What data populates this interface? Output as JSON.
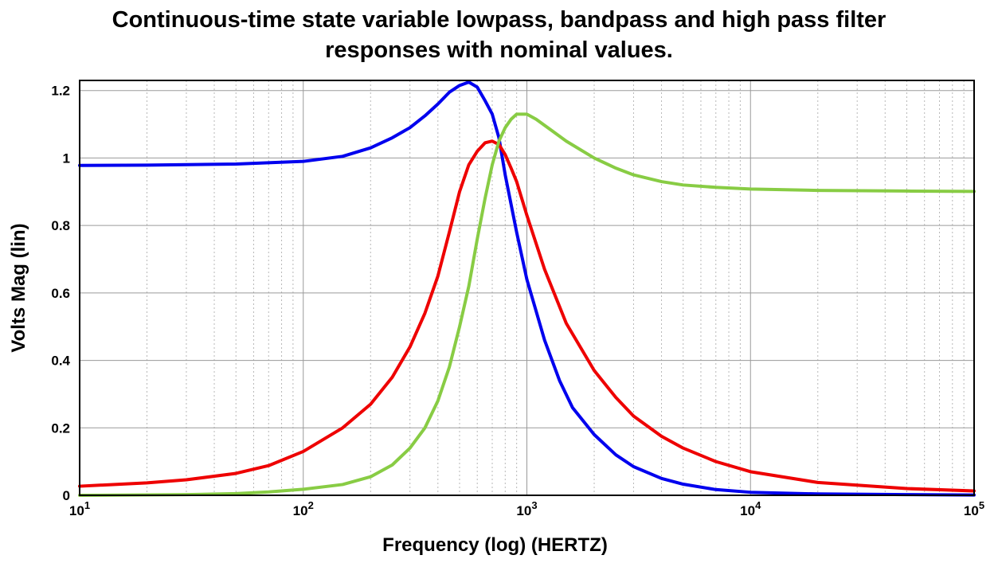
{
  "chart_data": {
    "type": "line",
    "title": {
      "line1": "Continuous-time state variable lowpass, bandpass and high pass filter",
      "line2": "responses with nominal values."
    },
    "xlabel": "Frequency (log) (HERTZ)",
    "ylabel": "Volts Mag (lin)",
    "xscale": "log",
    "xlim": [
      10,
      100000
    ],
    "ylim": [
      0,
      1.23
    ],
    "grid": true,
    "legend": "none",
    "x_ticks": [
      {
        "value": 10,
        "base": "10",
        "exp": "1"
      },
      {
        "value": 100,
        "base": "10",
        "exp": "2"
      },
      {
        "value": 1000,
        "base": "10",
        "exp": "3"
      },
      {
        "value": 10000,
        "base": "10",
        "exp": "4"
      },
      {
        "value": 100000,
        "base": "10",
        "exp": "5"
      }
    ],
    "y_ticks": [
      {
        "value": 0,
        "label": "0"
      },
      {
        "value": 0.2,
        "label": "0.2"
      },
      {
        "value": 0.4,
        "label": "0.4"
      },
      {
        "value": 0.6,
        "label": "0.6"
      },
      {
        "value": 0.8,
        "label": "0.8"
      },
      {
        "value": 1.0,
        "label": "1"
      },
      {
        "value": 1.2,
        "label": "1.2"
      }
    ],
    "series": [
      {
        "color": "#0000ee",
        "points": [
          [
            10,
            0.978
          ],
          [
            20,
            0.979
          ],
          [
            50,
            0.982
          ],
          [
            100,
            0.99
          ],
          [
            150,
            1.005
          ],
          [
            200,
            1.03
          ],
          [
            250,
            1.06
          ],
          [
            300,
            1.09
          ],
          [
            350,
            1.125
          ],
          [
            400,
            1.16
          ],
          [
            450,
            1.195
          ],
          [
            500,
            1.215
          ],
          [
            550,
            1.225
          ],
          [
            600,
            1.21
          ],
          [
            650,
            1.17
          ],
          [
            700,
            1.13
          ],
          [
            750,
            1.06
          ],
          [
            800,
            0.95
          ],
          [
            900,
            0.78
          ],
          [
            1000,
            0.64
          ],
          [
            1200,
            0.46
          ],
          [
            1400,
            0.34
          ],
          [
            1600,
            0.26
          ],
          [
            2000,
            0.18
          ],
          [
            2500,
            0.12
          ],
          [
            3000,
            0.085
          ],
          [
            4000,
            0.05
          ],
          [
            5000,
            0.033
          ],
          [
            7000,
            0.017
          ],
          [
            10000,
            0.009
          ],
          [
            20000,
            0.004
          ],
          [
            50000,
            0.002
          ],
          [
            100000,
            0.001
          ]
        ]
      },
      {
        "color": "#ee0000",
        "points": [
          [
            10,
            0.027
          ],
          [
            20,
            0.037
          ],
          [
            30,
            0.046
          ],
          [
            50,
            0.065
          ],
          [
            70,
            0.088
          ],
          [
            100,
            0.13
          ],
          [
            150,
            0.2
          ],
          [
            200,
            0.27
          ],
          [
            250,
            0.35
          ],
          [
            300,
            0.44
          ],
          [
            350,
            0.54
          ],
          [
            400,
            0.65
          ],
          [
            450,
            0.78
          ],
          [
            500,
            0.9
          ],
          [
            550,
            0.98
          ],
          [
            600,
            1.02
          ],
          [
            650,
            1.045
          ],
          [
            700,
            1.05
          ],
          [
            750,
            1.04
          ],
          [
            800,
            1.01
          ],
          [
            850,
            0.97
          ],
          [
            900,
            0.93
          ],
          [
            1000,
            0.83
          ],
          [
            1200,
            0.67
          ],
          [
            1500,
            0.51
          ],
          [
            2000,
            0.37
          ],
          [
            2500,
            0.29
          ],
          [
            3000,
            0.235
          ],
          [
            4000,
            0.175
          ],
          [
            5000,
            0.14
          ],
          [
            7000,
            0.1
          ],
          [
            10000,
            0.07
          ],
          [
            20000,
            0.038
          ],
          [
            50000,
            0.02
          ],
          [
            100000,
            0.013
          ]
        ]
      },
      {
        "color": "#88cc44",
        "points": [
          [
            10,
            0.0
          ],
          [
            30,
            0.002
          ],
          [
            50,
            0.005
          ],
          [
            70,
            0.01
          ],
          [
            100,
            0.018
          ],
          [
            150,
            0.032
          ],
          [
            200,
            0.055
          ],
          [
            250,
            0.09
          ],
          [
            300,
            0.14
          ],
          [
            350,
            0.2
          ],
          [
            400,
            0.28
          ],
          [
            450,
            0.38
          ],
          [
            500,
            0.5
          ],
          [
            550,
            0.62
          ],
          [
            600,
            0.76
          ],
          [
            650,
            0.88
          ],
          [
            700,
            0.98
          ],
          [
            750,
            1.05
          ],
          [
            800,
            1.09
          ],
          [
            850,
            1.115
          ],
          [
            900,
            1.13
          ],
          [
            1000,
            1.13
          ],
          [
            1100,
            1.115
          ],
          [
            1300,
            1.08
          ],
          [
            1500,
            1.05
          ],
          [
            2000,
            1.0
          ],
          [
            2500,
            0.97
          ],
          [
            3000,
            0.95
          ],
          [
            4000,
            0.93
          ],
          [
            5000,
            0.92
          ],
          [
            7000,
            0.913
          ],
          [
            10000,
            0.908
          ],
          [
            20000,
            0.904
          ],
          [
            50000,
            0.902
          ],
          [
            100000,
            0.901
          ]
        ]
      }
    ]
  }
}
